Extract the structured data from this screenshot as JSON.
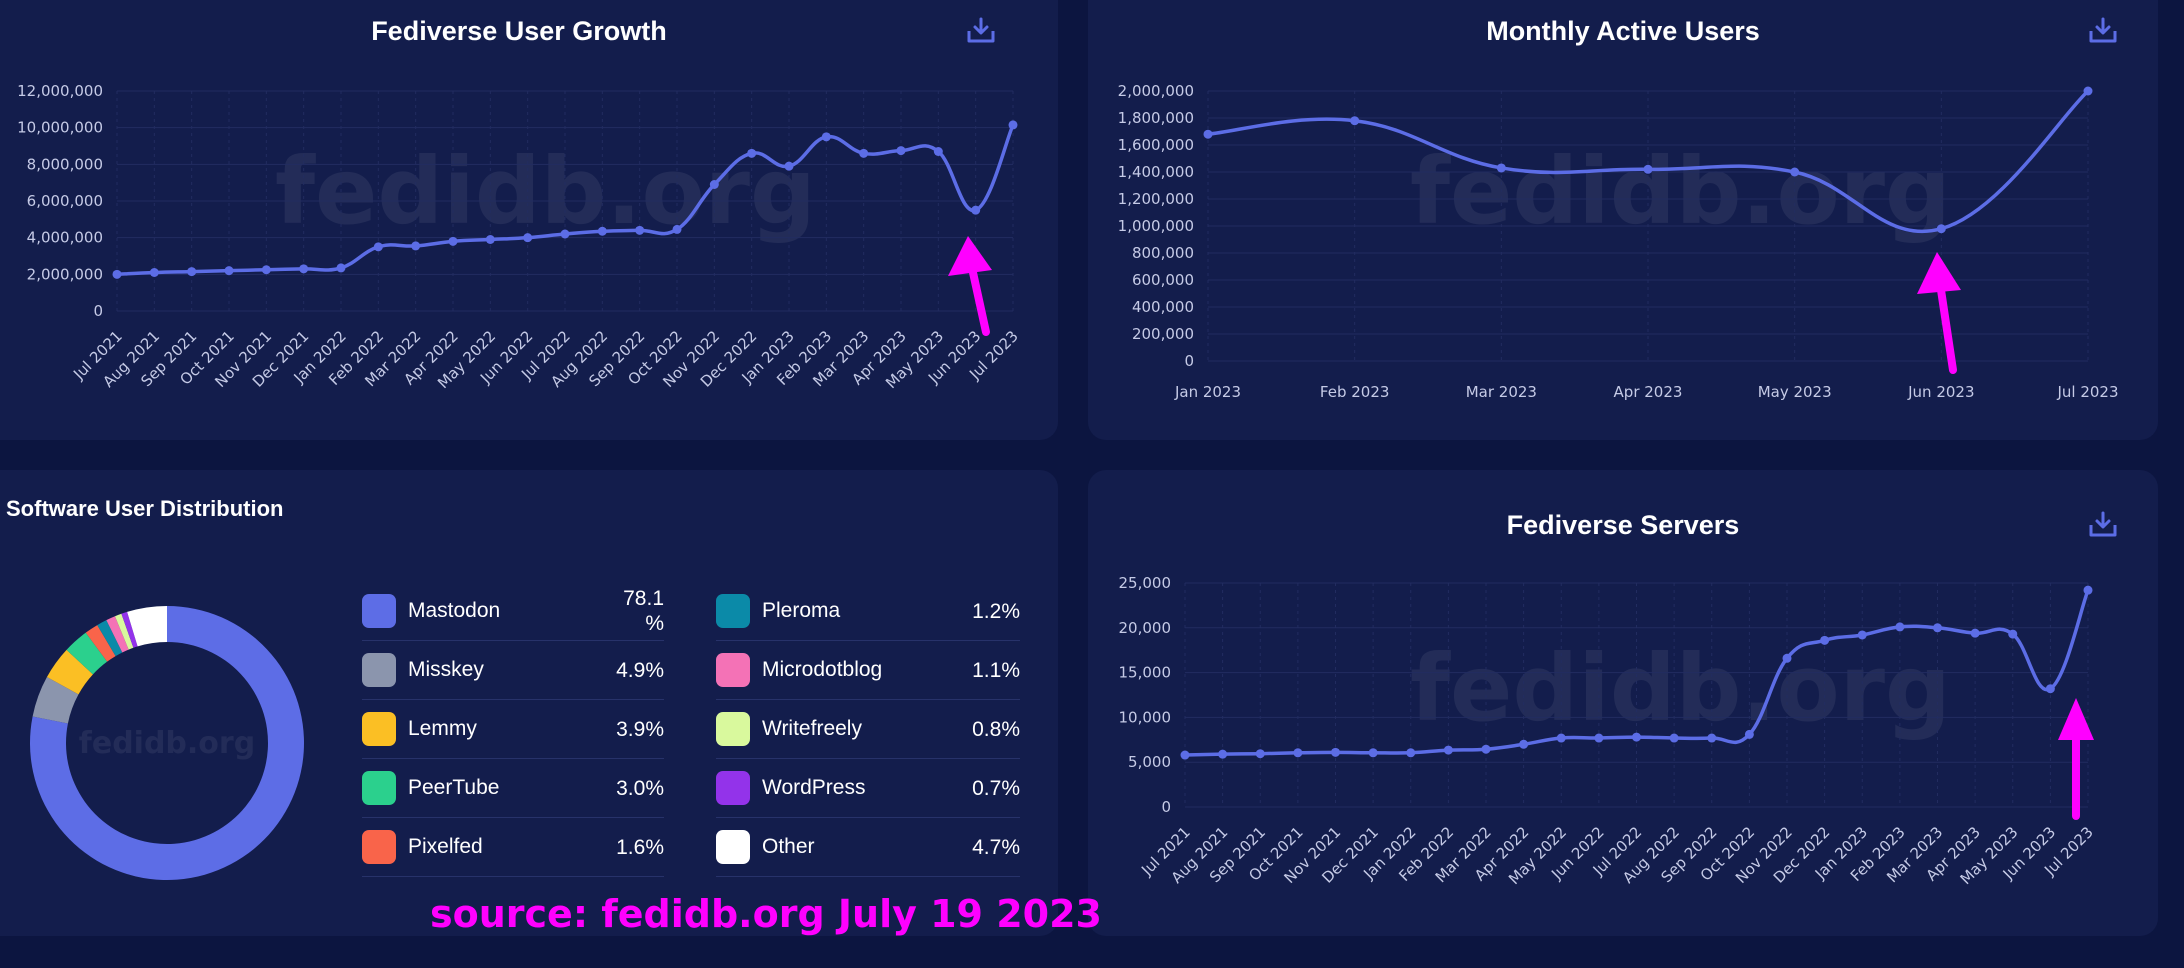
{
  "colors": {
    "background": "#0c1540",
    "card": "#131d4c",
    "line": "#5c6de6",
    "grid": "#222c60",
    "tick": "#c5cae6",
    "annotation": "#ff00ff",
    "download_icon": "#5c6de6"
  },
  "watermark": "fedidb.org",
  "annotation": {
    "text": "source: fedidb.org July 19 2023"
  },
  "chart_data": [
    {
      "id": "growth",
      "type": "line",
      "title": "Fediverse User Growth",
      "categories": [
        "Jul 2021",
        "Aug 2021",
        "Sep 2021",
        "Oct 2021",
        "Nov 2021",
        "Dec 2021",
        "Jan 2022",
        "Feb 2022",
        "Mar 2022",
        "Apr 2022",
        "May 2022",
        "Jun 2022",
        "Jul 2022",
        "Aug 2022",
        "Sep 2022",
        "Oct 2022",
        "Nov 2022",
        "Dec 2022",
        "Jan 2023",
        "Feb 2023",
        "Mar 2023",
        "Apr 2023",
        "May 2023",
        "Jun 2023",
        "Jul 2023"
      ],
      "values": [
        2000000,
        2100000,
        2150000,
        2200000,
        2250000,
        2300000,
        2350000,
        3500000,
        3550000,
        3800000,
        3900000,
        4000000,
        4200000,
        4350000,
        4400000,
        4450000,
        6900000,
        8600000,
        7900000,
        9500000,
        8600000,
        8750000,
        8700000,
        5500000,
        10150000
      ],
      "yticks": [
        0,
        2000000,
        4000000,
        6000000,
        8000000,
        10000000,
        12000000
      ],
      "ytick_labels": [
        "0",
        "2,000,000",
        "4,000,000",
        "6,000,000",
        "8,000,000",
        "10,000,000",
        "12,000,000"
      ],
      "ylim": [
        0,
        12000000
      ],
      "grid": true,
      "download_icon": "download-icon"
    },
    {
      "id": "mau",
      "type": "line",
      "title": "Monthly Active Users",
      "categories": [
        "Jan 2023",
        "Feb 2023",
        "Mar 2023",
        "Apr 2023",
        "May 2023",
        "Jun 2023",
        "Jul 2023"
      ],
      "values": [
        1680000,
        1780000,
        1430000,
        1420000,
        1400000,
        980000,
        2000000
      ],
      "yticks": [
        0,
        200000,
        400000,
        600000,
        800000,
        1000000,
        1200000,
        1400000,
        1600000,
        1800000,
        2000000
      ],
      "ytick_labels": [
        "0",
        "200,000",
        "400,000",
        "600,000",
        "800,000",
        "1,000,000",
        "1,200,000",
        "1,400,000",
        "1,600,000",
        "1,800,000",
        "2,000,000"
      ],
      "ylim": [
        0,
        2000000
      ],
      "grid": true,
      "download_icon": "download-icon"
    },
    {
      "id": "distribution",
      "type": "pie",
      "title": "Software User Distribution",
      "labels": [
        "Mastodon",
        "Misskey",
        "Lemmy",
        "PeerTube",
        "Pixelfed",
        "Pleroma",
        "Microdotblog",
        "Writefreely",
        "WordPress",
        "Other"
      ],
      "values": [
        78.1,
        4.9,
        3.9,
        3.0,
        1.6,
        1.2,
        1.1,
        0.8,
        0.7,
        4.7
      ],
      "value_labels": [
        "78.1 %",
        "4.9%",
        "3.9%",
        "3.0%",
        "1.6%",
        "1.2%",
        "1.1%",
        "0.8%",
        "0.7%",
        "4.7%"
      ],
      "colors": [
        "#5d6de6",
        "#8b95ad",
        "#fbbf24",
        "#2bd08d",
        "#f9644a",
        "#0b8aa8",
        "#f472b6",
        "#d9f99d",
        "#9333ea",
        "#ffffff"
      ],
      "donut": true
    },
    {
      "id": "servers",
      "type": "line",
      "title": "Fediverse Servers",
      "categories": [
        "Jul 2021",
        "Aug 2021",
        "Sep 2021",
        "Oct 2021",
        "Nov 2021",
        "Dec 2021",
        "Jan 2022",
        "Feb 2022",
        "Mar 2022",
        "Apr 2022",
        "May 2022",
        "Jun 2022",
        "Jul 2022",
        "Aug 2022",
        "Sep 2022",
        "Oct 2022",
        "Nov 2022",
        "Dec 2022",
        "Jan 2023",
        "Feb 2023",
        "Mar 2023",
        "Apr 2023",
        "May 2023",
        "Jun 2023",
        "Jul 2023"
      ],
      "values": [
        5800,
        5900,
        5950,
        6050,
        6100,
        6050,
        6050,
        6350,
        6450,
        7000,
        7700,
        7700,
        7800,
        7700,
        7700,
        8100,
        16600,
        18600,
        19200,
        20100,
        20000,
        19400,
        19300,
        13200,
        24200
      ],
      "yticks": [
        0,
        5000,
        10000,
        15000,
        20000,
        25000
      ],
      "ytick_labels": [
        "0",
        "5,000",
        "10,000",
        "15,000",
        "20,000",
        "25,000"
      ],
      "ylim": [
        0,
        25000
      ],
      "grid": true,
      "download_icon": "download-icon"
    }
  ]
}
